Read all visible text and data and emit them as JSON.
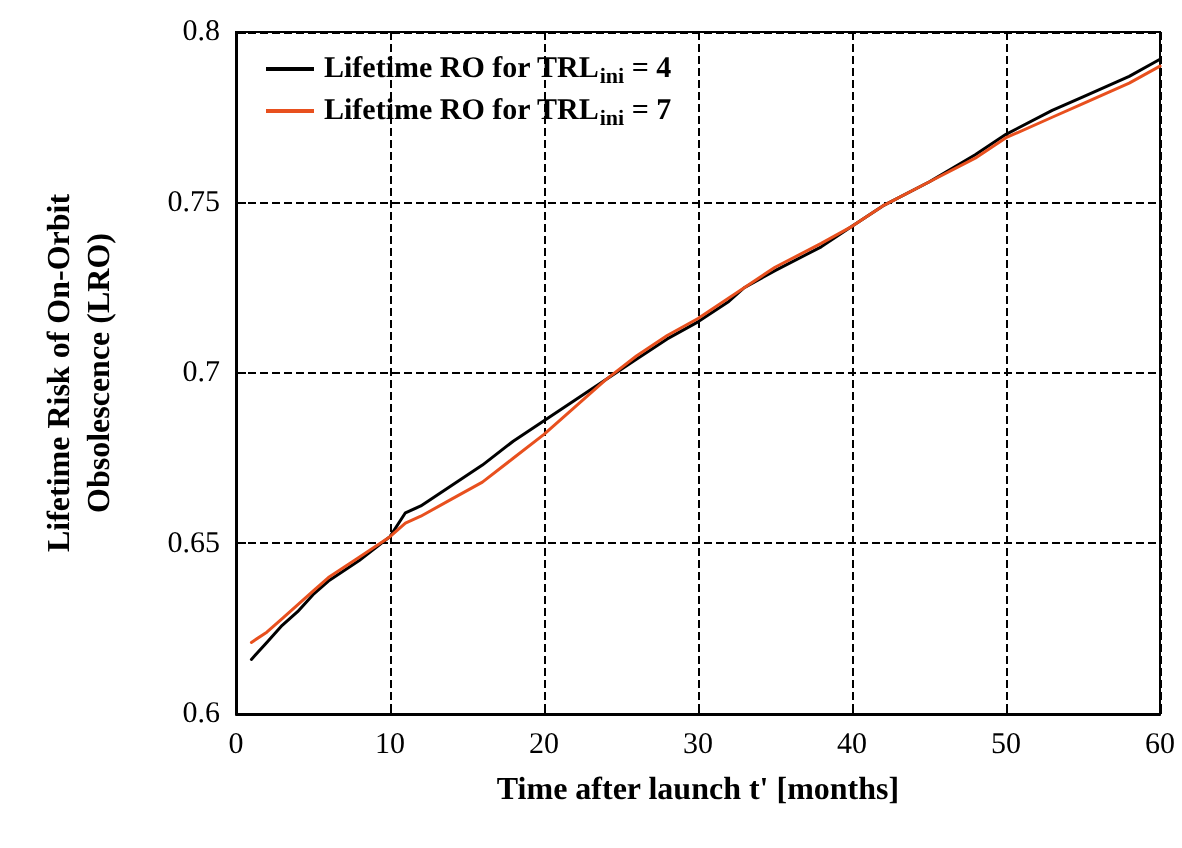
{
  "chart_data": {
    "type": "line",
    "xlabel": "Time after launch t' [months]",
    "ylabel": "Lifetime Risk of On-Orbit\nObsolescence (LRO)",
    "xlim": [
      0,
      60
    ],
    "xticks": [
      0,
      10,
      20,
      30,
      40,
      50,
      60
    ],
    "ylim": [
      0.6,
      0.8
    ],
    "yticks": [
      0.6,
      0.65,
      0.7,
      0.75,
      0.8
    ],
    "grid": true,
    "legend": "top left",
    "marker": "none",
    "line_style": "solid",
    "x": [
      1,
      2,
      3,
      4,
      5,
      6,
      8,
      10,
      11,
      12,
      14,
      16,
      18,
      20,
      22,
      24,
      26,
      28,
      30,
      32,
      33,
      35,
      38,
      40,
      42,
      45,
      48,
      50,
      53,
      55,
      58,
      60
    ],
    "series": [
      {
        "name": "Lifetime RO for TRL$_{ini}$ = 4",
        "color": "#000000",
        "values": [
          0.616,
          0.621,
          0.626,
          0.63,
          0.635,
          0.639,
          0.645,
          0.652,
          0.659,
          0.661,
          0.667,
          0.673,
          0.68,
          0.686,
          0.692,
          0.698,
          0.704,
          0.71,
          0.715,
          0.721,
          0.725,
          0.73,
          0.737,
          0.743,
          0.749,
          0.756,
          0.764,
          0.77,
          0.777,
          0.781,
          0.787,
          0.792
        ]
      },
      {
        "name": "Lifetime RO for TRL$_{ini}$ = 7",
        "color": "#e8501e",
        "values": [
          0.621,
          0.624,
          0.628,
          0.632,
          0.636,
          0.64,
          0.646,
          0.652,
          0.656,
          0.658,
          0.663,
          0.668,
          0.675,
          0.682,
          0.69,
          0.698,
          0.705,
          0.711,
          0.716,
          0.722,
          0.725,
          0.731,
          0.738,
          0.743,
          0.749,
          0.756,
          0.763,
          0.769,
          0.775,
          0.779,
          0.785,
          0.79
        ]
      }
    ]
  }
}
